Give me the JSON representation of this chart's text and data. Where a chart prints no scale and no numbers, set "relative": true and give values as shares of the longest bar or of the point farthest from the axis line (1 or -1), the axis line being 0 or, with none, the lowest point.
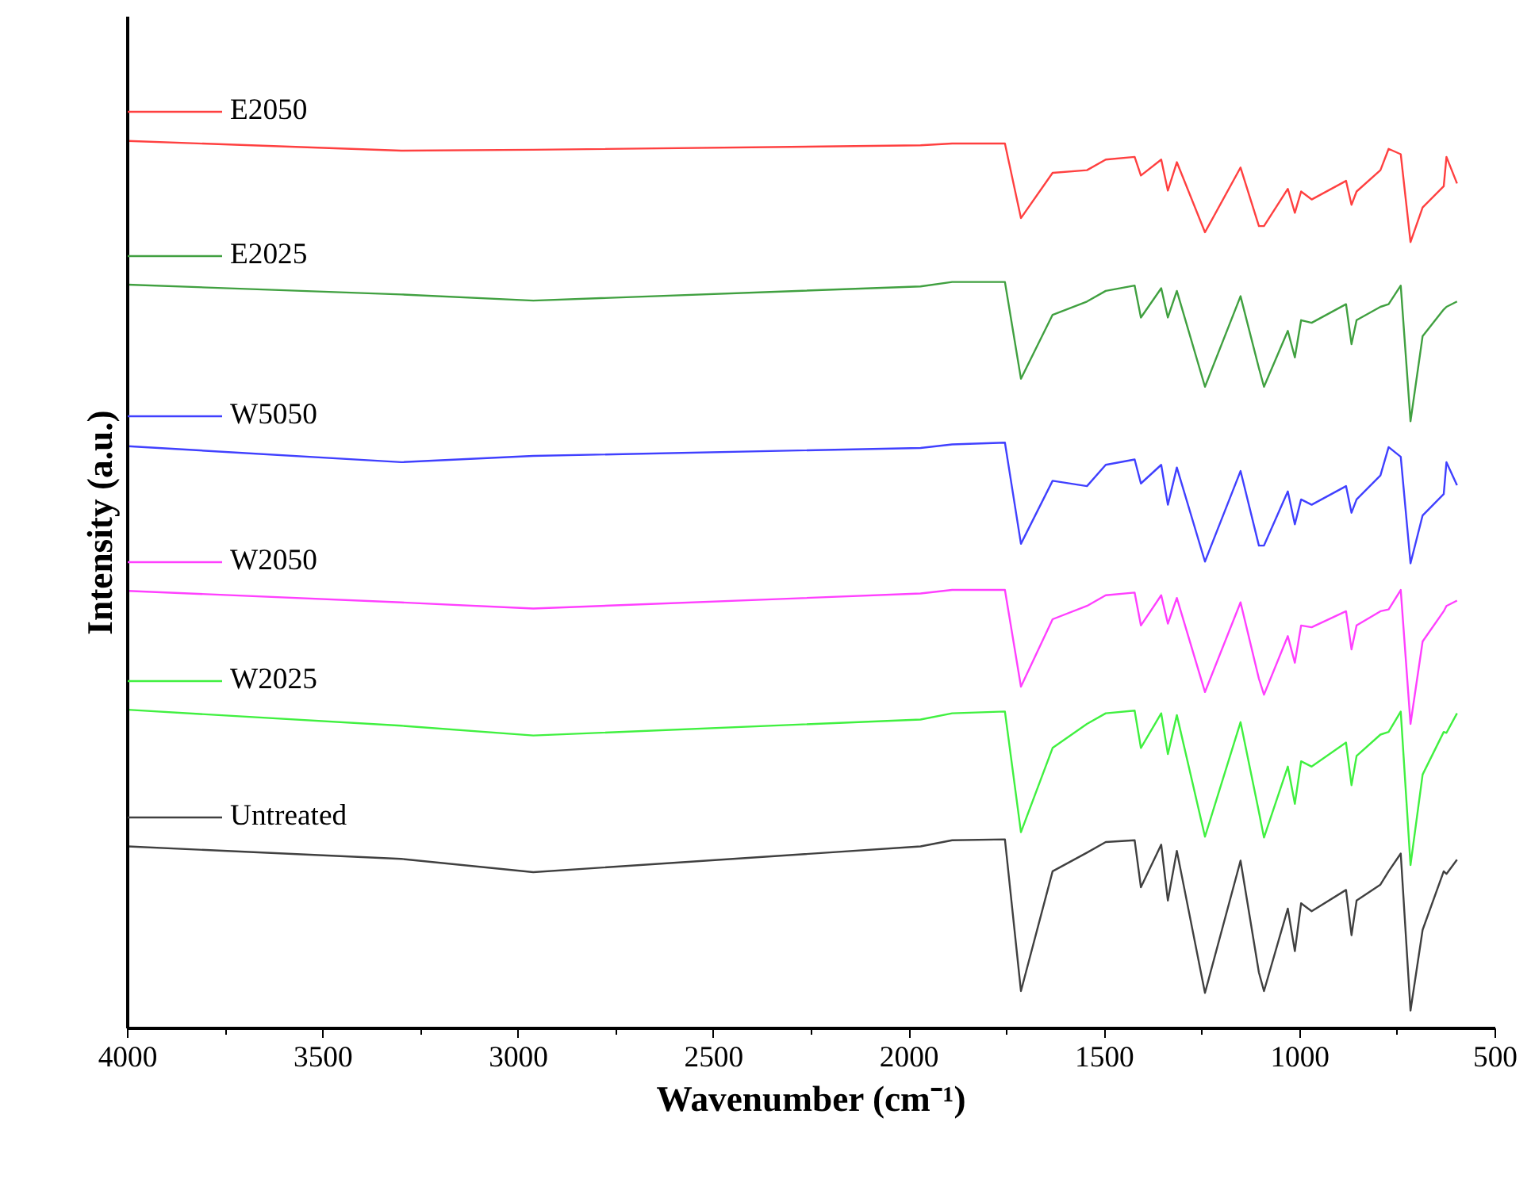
{
  "chart_data": {
    "type": "line",
    "relative": true,
    "xlabel": "Wavenumber (cm⁻¹)",
    "ylabel": "Intensity (a.u.)",
    "x": [
      4000,
      3300,
      2962,
      1971,
      1890,
      1755,
      1714,
      1633,
      1545,
      1497,
      1423,
      1407,
      1355,
      1338,
      1315,
      1243,
      1152,
      1105,
      1092,
      1031,
      1013,
      997,
      970,
      882,
      868,
      855,
      794,
      773,
      742,
      717,
      686,
      632,
      625,
      598
    ],
    "xlim": [
      4000,
      500
    ],
    "xticks": [
      4000,
      3500,
      3000,
      2500,
      2000,
      1500,
      1000,
      500
    ],
    "grid": false,
    "legend": "left",
    "marker": "none",
    "line_style": "solid",
    "series": [
      {
        "name": "E2050",
        "color": "#ff4040",
        "values": [
          1.0,
          0.989,
          0.99,
          0.995,
          0.997,
          0.997,
          0.913,
          0.964,
          0.967,
          0.979,
          0.982,
          0.961,
          0.979,
          0.944,
          0.976,
          0.897,
          0.97,
          0.904,
          0.904,
          0.946,
          0.919,
          0.943,
          0.934,
          0.955,
          0.928,
          0.943,
          0.967,
          0.991,
          0.985,
          0.886,
          0.925,
          0.949,
          0.982,
          0.952
        ]
      },
      {
        "name": "E2025",
        "color": "#40a040",
        "values": [
          0.838,
          0.827,
          0.82,
          0.836,
          0.841,
          0.841,
          0.732,
          0.804,
          0.819,
          0.831,
          0.837,
          0.801,
          0.834,
          0.801,
          0.831,
          0.723,
          0.825,
          0.744,
          0.723,
          0.786,
          0.756,
          0.798,
          0.795,
          0.816,
          0.771,
          0.798,
          0.813,
          0.816,
          0.837,
          0.684,
          0.78,
          0.81,
          0.813,
          0.819
        ]
      },
      {
        "name": "W5050",
        "color": "#4040ff",
        "values": [
          0.656,
          0.638,
          0.645,
          0.654,
          0.658,
          0.66,
          0.546,
          0.617,
          0.611,
          0.635,
          0.641,
          0.614,
          0.635,
          0.59,
          0.632,
          0.526,
          0.628,
          0.544,
          0.544,
          0.605,
          0.568,
          0.596,
          0.59,
          0.611,
          0.581,
          0.596,
          0.623,
          0.655,
          0.644,
          0.524,
          0.578,
          0.602,
          0.638,
          0.612
        ]
      },
      {
        "name": "W2050",
        "color": "#ff40ff",
        "values": [
          0.493,
          0.48,
          0.473,
          0.49,
          0.494,
          0.494,
          0.385,
          0.461,
          0.476,
          0.488,
          0.491,
          0.454,
          0.488,
          0.456,
          0.485,
          0.379,
          0.48,
          0.394,
          0.376,
          0.442,
          0.412,
          0.454,
          0.452,
          0.47,
          0.427,
          0.454,
          0.47,
          0.472,
          0.494,
          0.343,
          0.436,
          0.47,
          0.476,
          0.482
        ]
      },
      {
        "name": "W2025",
        "color": "#40f040",
        "values": [
          0.359,
          0.341,
          0.33,
          0.348,
          0.355,
          0.357,
          0.221,
          0.316,
          0.343,
          0.355,
          0.358,
          0.316,
          0.355,
          0.309,
          0.353,
          0.216,
          0.345,
          0.244,
          0.215,
          0.295,
          0.253,
          0.301,
          0.295,
          0.322,
          0.274,
          0.307,
          0.331,
          0.334,
          0.357,
          0.184,
          0.286,
          0.334,
          0.333,
          0.355
        ]
      },
      {
        "name": "Untreated",
        "color": "#404040",
        "values": [
          0.205,
          0.191,
          0.176,
          0.205,
          0.212,
          0.213,
          0.042,
          0.177,
          0.198,
          0.21,
          0.212,
          0.159,
          0.207,
          0.144,
          0.2,
          0.04,
          0.189,
          0.063,
          0.042,
          0.135,
          0.087,
          0.141,
          0.132,
          0.156,
          0.105,
          0.144,
          0.162,
          0.177,
          0.197,
          0.02,
          0.111,
          0.177,
          0.174,
          0.19
        ]
      }
    ]
  }
}
